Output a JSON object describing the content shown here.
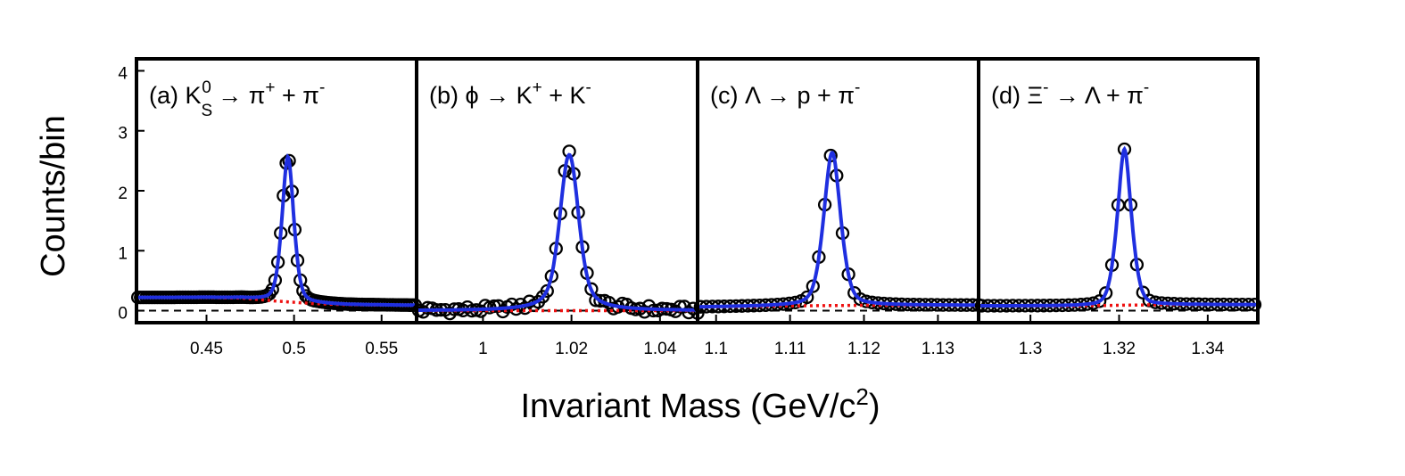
{
  "chart_data": {
    "type": "scatter",
    "ylabel": "Counts/bin",
    "xlabel_main": "Invariant Mass (GeV/c",
    "xlabel_sup": "2",
    "xlabel_close": ")",
    "ylim": [
      -0.2,
      4.2
    ],
    "yticks": [
      0,
      1,
      2,
      3,
      4
    ],
    "grid": false,
    "colors": {
      "fit": "#1f2fe0",
      "background": "#ee1111",
      "points": "#000000",
      "zero_line": "#000000"
    },
    "panels": [
      {
        "id": "a",
        "label": {
          "tag": "(a)",
          "parts": [
            {
              "t": "K",
              "s": "n"
            },
            {
              "t": "S",
              "s": "sub"
            },
            {
              "t": "0",
              "s": "sup"
            },
            {
              "t": " → π",
              "s": "n"
            },
            {
              "t": "+",
              "s": "sup"
            },
            {
              "t": " + π",
              "s": "n"
            },
            {
              "t": "-",
              "s": "sup"
            }
          ]
        },
        "xlim": [
          0.41,
          0.57
        ],
        "xticks": [
          0.45,
          0.5,
          0.55
        ],
        "xtick_labels": [
          "0.45",
          "0.5",
          "0.55"
        ],
        "peak": {
          "mean": 0.4965,
          "sigma": 0.0035,
          "gamma": 0.0035,
          "amp": 2.42
        },
        "bg": {
          "x": [
            0.41,
            0.45,
            0.47,
            0.49,
            0.51,
            0.53,
            0.57
          ],
          "y": [
            0.22,
            0.22,
            0.21,
            0.16,
            0.12,
            0.1,
            0.09
          ]
        },
        "point_spacing": 0.0016
      },
      {
        "id": "b",
        "label": {
          "tag": "(b)",
          "parts": [
            {
              "t": "ϕ → K",
              "s": "n"
            },
            {
              "t": "+",
              "s": "sup"
            },
            {
              "t": " + K",
              "s": "n"
            },
            {
              "t": "-",
              "s": "sup"
            }
          ]
        },
        "xlim": [
          0.985,
          1.0485
        ],
        "xticks": [
          1.0,
          1.02,
          1.04
        ],
        "xtick_labels": [
          "1",
          "1.02",
          "1.04"
        ],
        "peak": {
          "mean": 1.0195,
          "sigma": 0.002,
          "gamma": 0.003,
          "amp": 2.6
        },
        "bg": {
          "x": [
            0.985,
            1.0,
            1.02,
            1.0485
          ],
          "y": [
            0.0,
            0.0,
            0.0,
            0.0
          ]
        },
        "point_spacing": 0.001
      },
      {
        "id": "c",
        "label": {
          "tag": "(c)",
          "parts": [
            {
              "t": "Λ → p + π",
              "s": "n"
            },
            {
              "t": "-",
              "s": "sup"
            }
          ]
        },
        "xlim": [
          1.0975,
          1.1355
        ],
        "xticks": [
          1.1,
          1.11,
          1.12,
          1.13
        ],
        "xtick_labels": [
          "1.1",
          "1.11",
          "1.12",
          "1.13"
        ],
        "peak": {
          "mean": 1.1157,
          "sigma": 0.0012,
          "gamma": 0.0012,
          "amp": 2.55
        },
        "bg": {
          "x": [
            1.0975,
            1.11,
            1.12,
            1.1355
          ],
          "y": [
            0.06,
            0.08,
            0.09,
            0.09
          ]
        },
        "point_spacing": 0.0008
      },
      {
        "id": "d",
        "label": {
          "tag": "(d)",
          "parts": [
            {
              "t": "Ξ",
              "s": "n"
            },
            {
              "t": "-",
              "s": "sup"
            },
            {
              "t": " → Λ + π",
              "s": "n"
            },
            {
              "t": "-",
              "s": "sup"
            }
          ]
        },
        "xlim": [
          1.2883,
          1.3513
        ],
        "xticks": [
          1.3,
          1.32,
          1.34
        ],
        "xtick_labels": [
          "1.3",
          "1.32",
          "1.34"
        ],
        "peak": {
          "mean": 1.3212,
          "sigma": 0.0018,
          "gamma": 0.0014,
          "amp": 2.6
        },
        "bg": {
          "x": [
            1.2883,
            1.31,
            1.32,
            1.33,
            1.3513
          ],
          "y": [
            0.08,
            0.08,
            0.09,
            0.1,
            0.1
          ]
        },
        "point_spacing": 0.0014
      }
    ]
  }
}
